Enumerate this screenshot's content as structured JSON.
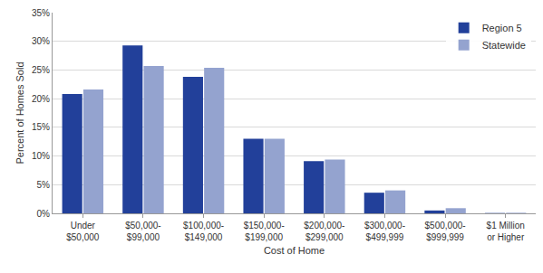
{
  "chart_data": {
    "type": "bar",
    "x_label": "Cost of Home",
    "y_label": "Percent of Homes Sold",
    "categories": [
      "Under\n$50,000",
      "$50,000-\n$99,000",
      "$100,000-\n$149,000",
      "$150,000-\n$199,000",
      "$200,000-\n$299,000",
      "$300,000-\n$499,999",
      "$500,000-\n$999,999",
      "$1 Million\nor Higher"
    ],
    "series": [
      {
        "name": "Region 5",
        "color": "#22409a",
        "values": [
          20.8,
          29.3,
          23.8,
          13.0,
          9.1,
          3.6,
          0.5,
          0.05
        ]
      },
      {
        "name": "Statewide",
        "color": "#94a3cf",
        "values": [
          21.6,
          25.7,
          25.4,
          13.0,
          9.4,
          4.0,
          0.9,
          0.1
        ]
      }
    ],
    "ylim": [
      0,
      35
    ],
    "yticks": [
      {
        "value": 0,
        "label": "0%"
      },
      {
        "value": 5,
        "label": "5%"
      },
      {
        "value": 10,
        "label": "10%"
      },
      {
        "value": 15,
        "label": "15%"
      },
      {
        "value": 20,
        "label": "20%"
      },
      {
        "value": 25,
        "label": "25%"
      },
      {
        "value": 30,
        "label": "30%"
      },
      {
        "value": 35,
        "label": "35%"
      }
    ],
    "grid": true,
    "legend": "top-right"
  }
}
